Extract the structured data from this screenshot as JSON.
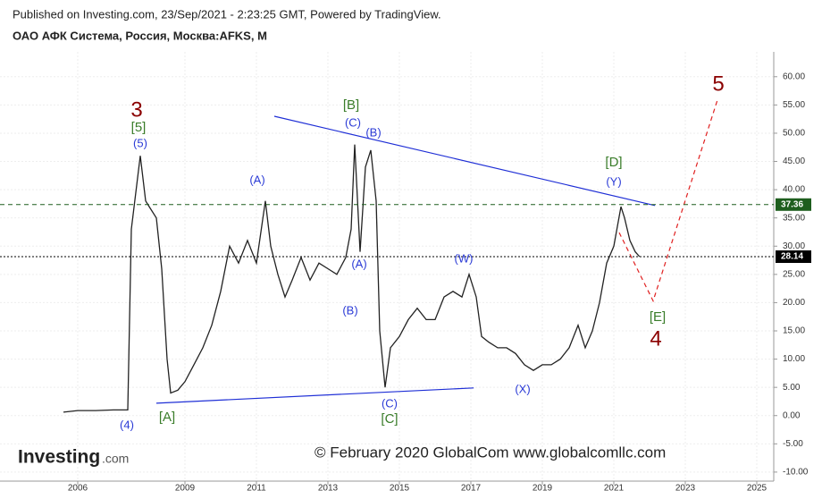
{
  "header": {
    "published": "Published on Investing.com, 23/Sep/2021 - 2:23:25 GMT, Powered by TradingView.",
    "symbol": "ОАО АФК Система, Россия, Москва:AFKS, M"
  },
  "watermark": "© February 2020 GlobalCom www.globalcomllc.com",
  "logo": {
    "brand": "Investing",
    "suffix": ".com"
  },
  "chart_data": {
    "type": "line",
    "color": "#222222",
    "grid": true,
    "x": [
      2005.6,
      2006.0,
      2006.5,
      2007.0,
      2007.4,
      2007.5,
      2007.75,
      2007.9,
      2008.0,
      2008.2,
      2008.35,
      2008.5,
      2008.6,
      2008.8,
      2009.0,
      2009.25,
      2009.5,
      2009.75,
      2010.0,
      2010.25,
      2010.5,
      2010.75,
      2011.0,
      2011.25,
      2011.4,
      2011.6,
      2011.8,
      2012.0,
      2012.25,
      2012.5,
      2012.75,
      2013.0,
      2013.25,
      2013.5,
      2013.65,
      2013.75,
      2013.9,
      2014.05,
      2014.2,
      2014.35,
      2014.45,
      2014.6,
      2014.75,
      2015.0,
      2015.25,
      2015.5,
      2015.75,
      2016.0,
      2016.25,
      2016.5,
      2016.75,
      2016.95,
      2017.15,
      2017.3,
      2017.5,
      2017.75,
      2018.0,
      2018.25,
      2018.5,
      2018.75,
      2019.0,
      2019.25,
      2019.5,
      2019.75,
      2020.0,
      2020.2,
      2020.4,
      2020.6,
      2020.8,
      2021.0,
      2021.2,
      2021.3,
      2021.45,
      2021.6,
      2021.72
    ],
    "values": [
      0.6,
      0.9,
      0.9,
      1.0,
      1.0,
      33,
      46,
      38,
      37,
      35,
      26,
      10,
      4,
      4.5,
      6,
      9,
      12,
      16,
      22,
      30,
      27,
      31,
      27,
      38,
      30,
      25,
      21,
      24,
      28,
      24,
      27,
      26,
      25,
      28,
      33,
      48,
      29,
      44,
      47,
      38,
      15,
      5,
      12,
      14,
      17,
      19,
      17,
      17,
      21,
      22,
      21,
      25,
      21,
      14,
      13,
      12,
      12,
      11,
      9,
      8,
      9,
      9,
      10,
      12,
      16,
      12,
      15,
      20,
      27,
      30,
      37,
      35,
      31,
      29,
      28.14
    ],
    "xlim": [
      2003.825,
      2025.475
    ],
    "xticks": [
      2006,
      2009,
      2011,
      2013,
      2015,
      2017,
      2019,
      2021,
      2023,
      2025
    ],
    "ylim": [
      -11.6,
      64.4
    ],
    "yticks": [
      {
        "value": 60,
        "label": "60.00"
      },
      {
        "value": 55,
        "label": "55.00"
      },
      {
        "value": 50,
        "label": "50.00"
      },
      {
        "value": 45,
        "label": "45.00"
      },
      {
        "value": 40,
        "label": "40.00"
      },
      {
        "value": 35,
        "label": "35.00"
      },
      {
        "value": 30,
        "label": "30.00"
      },
      {
        "value": 25,
        "label": "25.00"
      },
      {
        "value": 20,
        "label": "20.00"
      },
      {
        "value": 15,
        "label": "15.00"
      },
      {
        "value": 10,
        "label": "10.00"
      },
      {
        "value": 5,
        "label": "5.00"
      },
      {
        "value": 0,
        "label": "0.00"
      },
      {
        "value": -5,
        "label": "-5.00"
      },
      {
        "value": -10,
        "label": "-10.00"
      }
    ],
    "price_lines": [
      {
        "value": 37.36,
        "color": "#1e5e1e",
        "style": "dashed"
      },
      {
        "value": 28.14,
        "color": "#000000",
        "style": "dotted"
      }
    ],
    "trendlines": [
      {
        "color": "#1f2fd6",
        "style": "solid",
        "x": [
          2011.5,
          2022.15
        ],
        "y": [
          53.0,
          37.2
        ]
      },
      {
        "color": "#1f2fd6",
        "style": "solid",
        "x": [
          2008.2,
          2017.08
        ],
        "y": [
          2.2,
          4.9
        ]
      },
      {
        "color": "#e02020",
        "style": "dashed",
        "x": [
          2021.15,
          2022.1,
          2023.9
        ],
        "y": [
          32.4,
          20.3,
          55.9
        ]
      }
    ],
    "annotations": [
      {
        "text": "3",
        "color": "#8b0000"
      },
      {
        "text": "[5]",
        "color": "#3a7d2a"
      },
      {
        "text": "(5)",
        "color": "#2b3bd6"
      },
      {
        "text": "(4)",
        "color": "#2b3bd6"
      },
      {
        "text": "[A]",
        "color": "#3a7d2a"
      },
      {
        "text": "(A)",
        "color": "#2b3bd6"
      },
      {
        "text": "[B]",
        "color": "#3a7d2a"
      },
      {
        "text": "(C)",
        "color": "#2b3bd6"
      },
      {
        "text": "(B)",
        "color": "#2b3bd6"
      },
      {
        "text": "(A)",
        "color": "#2b3bd6"
      },
      {
        "text": "(B)",
        "color": "#2b3bd6"
      },
      {
        "text": "(C)",
        "color": "#2b3bd6"
      },
      {
        "text": "[C]",
        "color": "#3a7d2a"
      },
      {
        "text": "(W)",
        "color": "#2b3bd6"
      },
      {
        "text": "(X)",
        "color": "#2b3bd6"
      },
      {
        "text": "[D]",
        "color": "#3a7d2a"
      },
      {
        "text": "(Y)",
        "color": "#2b3bd6"
      },
      {
        "text": "[E]",
        "color": "#3a7d2a"
      },
      {
        "text": "4",
        "color": "#8b0000"
      },
      {
        "text": "5",
        "color": "#8b0000"
      }
    ]
  }
}
